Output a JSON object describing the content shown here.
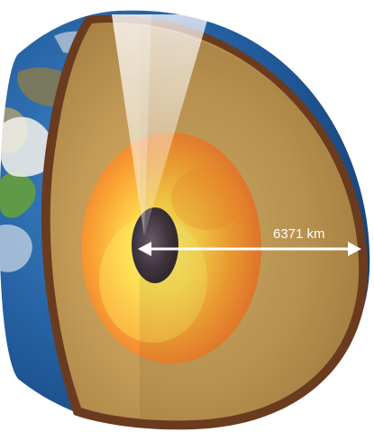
{
  "diagram": {
    "radius_label": "6371 km"
  },
  "palette": {
    "ocean": "#2f6fb3",
    "land_green": "#5f9a48",
    "cloud": "#f4f2ea",
    "crust": "#6b3b1f",
    "mantle": "#c9a35d",
    "outer_core": "#f7b23a",
    "inner_core": "#3a3340",
    "arrow": "#ffffff"
  }
}
